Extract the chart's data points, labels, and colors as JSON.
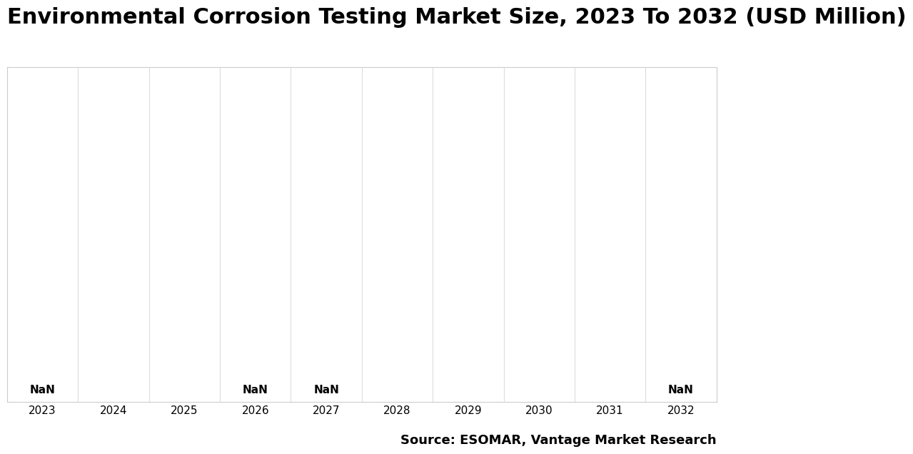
{
  "title": "Environmental Corrosion Testing Market Size, 2023 To 2032 (USD Million)",
  "years": [
    2023,
    2024,
    2025,
    2026,
    2027,
    2028,
    2029,
    2030,
    2031,
    2032
  ],
  "values": [
    0,
    0,
    0,
    0,
    0,
    0,
    0,
    0,
    0,
    0
  ],
  "nan_label_indices": [
    0,
    3,
    4,
    9
  ],
  "background_color": "#ffffff",
  "plot_bg_color": "#ffffff",
  "grid_color": "#dddddd",
  "border_color": "#cccccc",
  "source_text": "Source: ESOMAR, Vantage Market Research",
  "title_fontsize": 22,
  "tick_fontsize": 11,
  "nan_fontsize": 11,
  "source_fontsize": 13
}
